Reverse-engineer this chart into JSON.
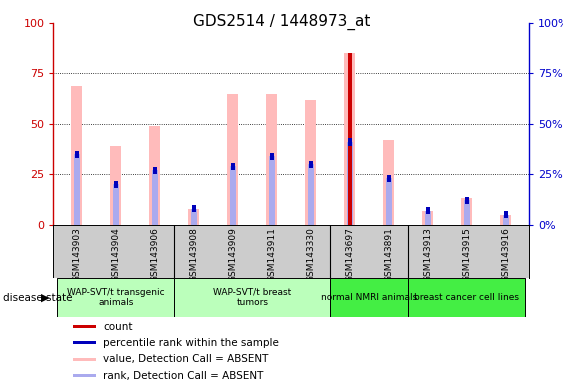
{
  "title": "GDS2514 / 1448973_at",
  "samples": [
    "GSM143903",
    "GSM143904",
    "GSM143906",
    "GSM143908",
    "GSM143909",
    "GSM143911",
    "GSM143330",
    "GSM143697",
    "GSM143891",
    "GSM143913",
    "GSM143915",
    "GSM143916"
  ],
  "group_defs": [
    {
      "start": 0,
      "end": 2,
      "name": "WAP-SVT/t transgenic\nanimals",
      "color": "#bbffbb"
    },
    {
      "start": 3,
      "end": 6,
      "name": "WAP-SVT/t breast\ntumors",
      "color": "#bbffbb"
    },
    {
      "start": 7,
      "end": 8,
      "name": "normal NMRI animals",
      "color": "#44ee44"
    },
    {
      "start": 9,
      "end": 11,
      "name": "breast cancer cell lines",
      "color": "#44ee44"
    }
  ],
  "pink_values": [
    69,
    39,
    49,
    8,
    65,
    65,
    62,
    85,
    42,
    7,
    13,
    5
  ],
  "blue_ranks": [
    35,
    20,
    27,
    8,
    29,
    34,
    30,
    41,
    23,
    7,
    12,
    5
  ],
  "red_counts": [
    0,
    0,
    0,
    0,
    0,
    0,
    0,
    85,
    0,
    0,
    0,
    0
  ],
  "ylim": [
    0,
    100
  ],
  "yticks": [
    0,
    25,
    50,
    75,
    100
  ],
  "left_axis_color": "#cc0000",
  "right_axis_color": "#0000cc",
  "pink_color": "#ffbbbb",
  "red_color": "#cc0000",
  "blue_dark_color": "#0000bb",
  "blue_light_color": "#aaaaee",
  "bg_color": "#ffffff",
  "tick_area_color": "#cccccc",
  "legend_items": [
    {
      "color": "#cc0000",
      "label": "count"
    },
    {
      "color": "#0000bb",
      "label": "percentile rank within the sample"
    },
    {
      "color": "#ffbbbb",
      "label": "value, Detection Call = ABSENT"
    },
    {
      "color": "#aaaaee",
      "label": "rank, Detection Call = ABSENT"
    }
  ]
}
